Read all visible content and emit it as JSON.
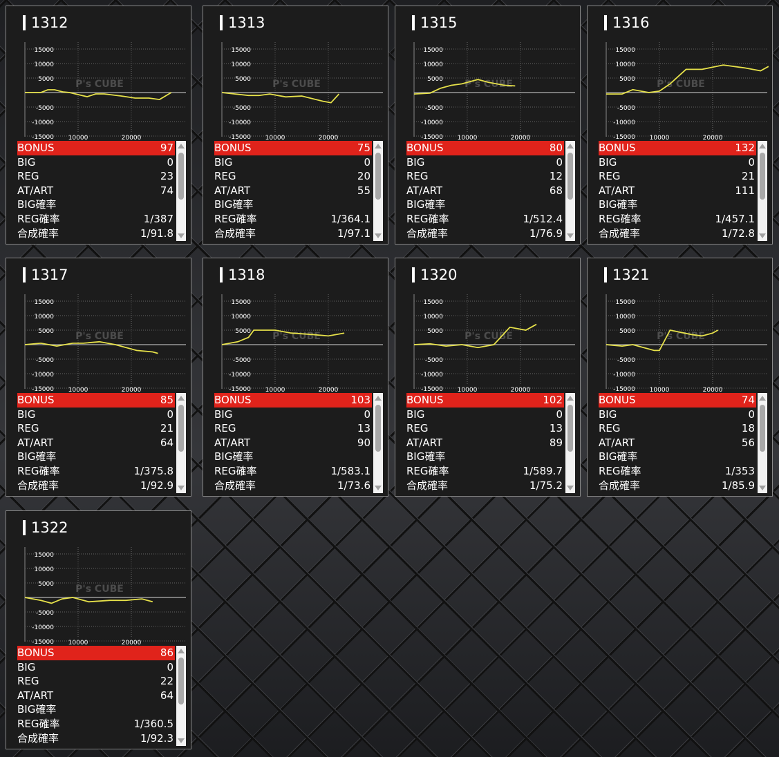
{
  "colors": {
    "bonus_bar": "#e0231b",
    "line": "#e6e14a",
    "zero_line": "#9a9a9a"
  },
  "chart_axes": {
    "y_ticks": [
      15000,
      10000,
      5000,
      -5000,
      -10000,
      -15000
    ],
    "x_ticks": [
      10000,
      20000
    ],
    "ylim": [
      -15000,
      15000
    ],
    "xlim": [
      0,
      30000
    ]
  },
  "watermark": "P's CUBE",
  "stat_labels": [
    "BONUS",
    "BIG",
    "REG",
    "AT/ART",
    "BIG確率",
    "REG確率",
    "合成確率"
  ],
  "machines": [
    {
      "id": "1312",
      "stats": [
        "97",
        "0",
        "23",
        "74",
        "",
        "1/387",
        "1/91.8"
      ],
      "series": [
        [
          0,
          0
        ],
        [
          3000,
          0
        ],
        [
          4300,
          950
        ],
        [
          5600,
          950
        ],
        [
          7100,
          240
        ],
        [
          8400,
          0
        ],
        [
          11700,
          -1430
        ],
        [
          13300,
          -480
        ],
        [
          14900,
          -480
        ],
        [
          18100,
          -1190
        ],
        [
          20700,
          -1900
        ],
        [
          23300,
          -1900
        ],
        [
          25300,
          -2400
        ],
        [
          27500,
          0
        ]
      ]
    },
    {
      "id": "1313",
      "stats": [
        "75",
        "0",
        "20",
        "55",
        "",
        "1/364.1",
        "1/97.1"
      ],
      "series": [
        [
          0,
          0
        ],
        [
          2500,
          -500
        ],
        [
          5000,
          -1000
        ],
        [
          7000,
          -1000
        ],
        [
          9000,
          -500
        ],
        [
          12000,
          -1500
        ],
        [
          15000,
          -1200
        ],
        [
          19000,
          -3000
        ],
        [
          20500,
          -3500
        ],
        [
          22000,
          -500
        ]
      ]
    },
    {
      "id": "1315",
      "stats": [
        "80",
        "0",
        "12",
        "68",
        "",
        "1/512.4",
        "1/76.9"
      ],
      "series": [
        [
          0,
          -500
        ],
        [
          3000,
          -200
        ],
        [
          5000,
          1500
        ],
        [
          7000,
          2500
        ],
        [
          9000,
          3000
        ],
        [
          12000,
          4500
        ],
        [
          14000,
          3500
        ],
        [
          17000,
          2500
        ],
        [
          19000,
          2300
        ]
      ]
    },
    {
      "id": "1316",
      "stats": [
        "132",
        "0",
        "21",
        "111",
        "",
        "1/457.1",
        "1/72.8"
      ],
      "series": [
        [
          0,
          -500
        ],
        [
          3000,
          -500
        ],
        [
          5000,
          1000
        ],
        [
          8000,
          0
        ],
        [
          10000,
          500
        ],
        [
          12000,
          3000
        ],
        [
          15000,
          8000
        ],
        [
          18000,
          8000
        ],
        [
          22000,
          9500
        ],
        [
          26000,
          8500
        ],
        [
          29000,
          7500
        ],
        [
          30500,
          9000
        ]
      ]
    },
    {
      "id": "1317",
      "stats": [
        "85",
        "0",
        "21",
        "64",
        "",
        "1/375.8",
        "1/92.9"
      ],
      "series": [
        [
          0,
          0
        ],
        [
          3000,
          500
        ],
        [
          6000,
          -500
        ],
        [
          9000,
          500
        ],
        [
          11000,
          500
        ],
        [
          14000,
          1000
        ],
        [
          17000,
          0
        ],
        [
          21000,
          -2000
        ],
        [
          24000,
          -2500
        ],
        [
          25000,
          -3000
        ]
      ]
    },
    {
      "id": "1318",
      "stats": [
        "103",
        "0",
        "13",
        "90",
        "",
        "1/583.1",
        "1/73.6"
      ],
      "series": [
        [
          0,
          0
        ],
        [
          3000,
          1000
        ],
        [
          5000,
          2500
        ],
        [
          6000,
          5000
        ],
        [
          10000,
          5000
        ],
        [
          13000,
          4000
        ],
        [
          17000,
          3500
        ],
        [
          20000,
          3000
        ],
        [
          23000,
          4000
        ]
      ]
    },
    {
      "id": "1320",
      "stats": [
        "102",
        "0",
        "13",
        "89",
        "",
        "1/589.7",
        "1/75.2"
      ],
      "series": [
        [
          0,
          0
        ],
        [
          3000,
          300
        ],
        [
          6000,
          -500
        ],
        [
          9000,
          0
        ],
        [
          12000,
          -1000
        ],
        [
          15000,
          0
        ],
        [
          18000,
          6000
        ],
        [
          21000,
          5000
        ],
        [
          23000,
          7000
        ]
      ]
    },
    {
      "id": "1321",
      "stats": [
        "74",
        "0",
        "18",
        "56",
        "",
        "1/353",
        "1/85.9"
      ],
      "series": [
        [
          0,
          0
        ],
        [
          3000,
          -500
        ],
        [
          5000,
          0
        ],
        [
          9000,
          -2000
        ],
        [
          10000,
          -2000
        ],
        [
          12000,
          5000
        ],
        [
          16000,
          3500
        ],
        [
          18000,
          3000
        ],
        [
          20000,
          4000
        ],
        [
          21000,
          5000
        ]
      ]
    },
    {
      "id": "1322",
      "stats": [
        "86",
        "0",
        "22",
        "64",
        "",
        "1/360.5",
        "1/92.3"
      ],
      "series": [
        [
          0,
          0
        ],
        [
          3000,
          -1000
        ],
        [
          5000,
          -2000
        ],
        [
          7000,
          -500
        ],
        [
          9000,
          0
        ],
        [
          12000,
          -1500
        ],
        [
          16000,
          -1000
        ],
        [
          19000,
          -1000
        ],
        [
          22000,
          -500
        ],
        [
          24000,
          -1500
        ]
      ]
    }
  ]
}
